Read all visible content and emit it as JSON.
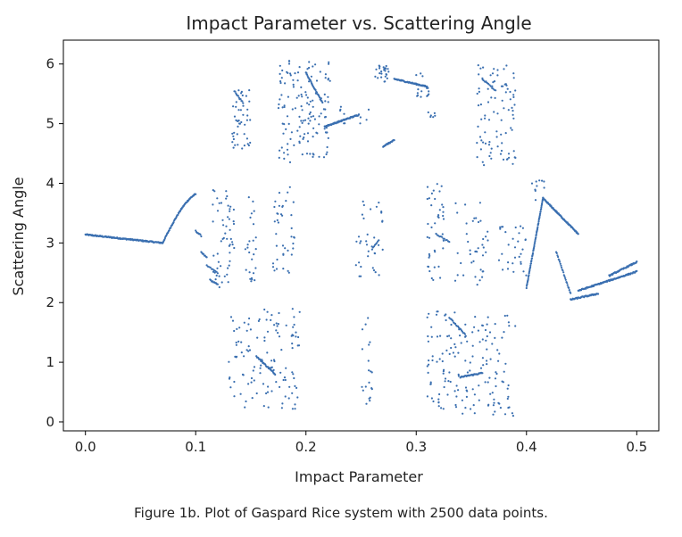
{
  "caption": "Figure 1b. Plot of Gaspard Rice system with 2500 data points.",
  "chart_data": {
    "type": "scatter",
    "title": "Impact Parameter vs. Scattering Angle",
    "xlabel": "Impact Parameter",
    "ylabel": "Scattering Angle",
    "xlim": [
      -0.02,
      0.52
    ],
    "ylim": [
      -0.15,
      6.4
    ],
    "xticks": [
      0.0,
      0.1,
      0.2,
      0.3,
      0.4,
      0.5
    ],
    "xtick_labels": [
      "0.0",
      "0.1",
      "0.2",
      "0.3",
      "0.4",
      "0.5"
    ],
    "yticks": [
      0,
      1,
      2,
      3,
      4,
      5,
      6
    ],
    "ytick_labels": [
      "0",
      "1",
      "2",
      "3",
      "4",
      "5",
      "6"
    ],
    "grid": false,
    "marker_color": "#3a6fb0",
    "point_count": 2500,
    "segments": [
      {
        "kind": "line",
        "x0": 0.0,
        "x1": 0.07,
        "y0": 3.14,
        "y1": 3.0,
        "n": 140
      },
      {
        "kind": "curve",
        "x0": 0.07,
        "x1": 0.1,
        "y0": 3.0,
        "y1": 3.82,
        "n": 70
      },
      {
        "kind": "line",
        "x0": 0.1,
        "x1": 0.105,
        "y0": 3.2,
        "y1": 3.12,
        "n": 8
      },
      {
        "kind": "line",
        "x0": 0.105,
        "x1": 0.11,
        "y0": 2.85,
        "y1": 2.75,
        "n": 8
      },
      {
        "kind": "line",
        "x0": 0.11,
        "x1": 0.12,
        "y0": 2.62,
        "y1": 2.5,
        "n": 10
      },
      {
        "kind": "line",
        "x0": 0.113,
        "x1": 0.12,
        "y0": 2.38,
        "y1": 2.3,
        "n": 10
      },
      {
        "kind": "cloud",
        "x0": 0.115,
        "x1": 0.135,
        "y0": 2.25,
        "y1": 3.9,
        "n": 55
      },
      {
        "kind": "cloud",
        "x0": 0.133,
        "x1": 0.15,
        "y0": 4.55,
        "y1": 5.6,
        "n": 45
      },
      {
        "kind": "line",
        "x0": 0.135,
        "x1": 0.143,
        "y0": 5.55,
        "y1": 5.35,
        "n": 12
      },
      {
        "kind": "cloud",
        "x0": 0.145,
        "x1": 0.155,
        "y0": 2.35,
        "y1": 3.8,
        "n": 25
      },
      {
        "kind": "cloud",
        "x0": 0.13,
        "x1": 0.195,
        "y0": 0.2,
        "y1": 1.9,
        "n": 120
      },
      {
        "kind": "line",
        "x0": 0.155,
        "x1": 0.172,
        "y0": 1.1,
        "y1": 0.8,
        "n": 30
      },
      {
        "kind": "cloud",
        "x0": 0.17,
        "x1": 0.19,
        "y0": 2.5,
        "y1": 4.0,
        "n": 40
      },
      {
        "kind": "cloud",
        "x0": 0.175,
        "x1": 0.222,
        "y0": 4.35,
        "y1": 6.1,
        "n": 140
      },
      {
        "kind": "line",
        "x0": 0.2,
        "x1": 0.215,
        "y0": 5.85,
        "y1": 5.35,
        "n": 30
      },
      {
        "kind": "line",
        "x0": 0.217,
        "x1": 0.248,
        "y0": 4.95,
        "y1": 5.15,
        "n": 70
      },
      {
        "kind": "cloud",
        "x0": 0.23,
        "x1": 0.26,
        "y0": 5.0,
        "y1": 5.3,
        "n": 10
      },
      {
        "kind": "cloud",
        "x0": 0.245,
        "x1": 0.27,
        "y0": 2.4,
        "y1": 3.7,
        "n": 35
      },
      {
        "kind": "line",
        "x0": 0.26,
        "x1": 0.266,
        "y0": 2.9,
        "y1": 3.05,
        "n": 8
      },
      {
        "kind": "cloud",
        "x0": 0.25,
        "x1": 0.26,
        "y0": 0.3,
        "y1": 1.8,
        "n": 20
      },
      {
        "kind": "cloud",
        "x0": 0.262,
        "x1": 0.275,
        "y0": 5.7,
        "y1": 6.0,
        "n": 25
      },
      {
        "kind": "line",
        "x0": 0.27,
        "x1": 0.28,
        "y0": 4.62,
        "y1": 4.72,
        "n": 25
      },
      {
        "kind": "line",
        "x0": 0.28,
        "x1": 0.31,
        "y0": 5.75,
        "y1": 5.62,
        "n": 60
      },
      {
        "kind": "cloud",
        "x0": 0.3,
        "x1": 0.313,
        "y0": 5.4,
        "y1": 5.85,
        "n": 15
      },
      {
        "kind": "cloud",
        "x0": 0.31,
        "x1": 0.318,
        "y0": 5.1,
        "y1": 5.2,
        "n": 6
      },
      {
        "kind": "cloud",
        "x0": 0.31,
        "x1": 0.325,
        "y0": 2.3,
        "y1": 4.05,
        "n": 40
      },
      {
        "kind": "line",
        "x0": 0.318,
        "x1": 0.33,
        "y0": 3.15,
        "y1": 3.02,
        "n": 12
      },
      {
        "kind": "cloud",
        "x0": 0.31,
        "x1": 0.34,
        "y0": 0.2,
        "y1": 1.9,
        "n": 70
      },
      {
        "kind": "line",
        "x0": 0.33,
        "x1": 0.345,
        "y0": 1.75,
        "y1": 1.45,
        "n": 20
      },
      {
        "kind": "line",
        "x0": 0.34,
        "x1": 0.36,
        "y0": 0.75,
        "y1": 0.82,
        "n": 40
      },
      {
        "kind": "cloud",
        "x0": 0.34,
        "x1": 0.39,
        "y0": 0.1,
        "y1": 1.8,
        "n": 90
      },
      {
        "kind": "cloud",
        "x0": 0.335,
        "x1": 0.365,
        "y0": 2.3,
        "y1": 3.7,
        "n": 40
      },
      {
        "kind": "cloud",
        "x0": 0.355,
        "x1": 0.39,
        "y0": 4.3,
        "y1": 6.0,
        "n": 90
      },
      {
        "kind": "line",
        "x0": 0.36,
        "x1": 0.372,
        "y0": 5.75,
        "y1": 5.55,
        "n": 12
      },
      {
        "kind": "cloud",
        "x0": 0.375,
        "x1": 0.4,
        "y0": 2.45,
        "y1": 3.3,
        "n": 30
      },
      {
        "kind": "line",
        "x0": 0.4,
        "x1": 0.415,
        "y0": 2.25,
        "y1": 3.75,
        "n": 70
      },
      {
        "kind": "cloud",
        "x0": 0.405,
        "x1": 0.418,
        "y0": 3.6,
        "y1": 4.05,
        "n": 10
      },
      {
        "kind": "line",
        "x0": 0.415,
        "x1": 0.447,
        "y0": 3.75,
        "y1": 3.15,
        "n": 80
      },
      {
        "kind": "line",
        "x0": 0.427,
        "x1": 0.44,
        "y0": 2.85,
        "y1": 2.15,
        "n": 25
      },
      {
        "kind": "line",
        "x0": 0.44,
        "x1": 0.465,
        "y0": 2.05,
        "y1": 2.15,
        "n": 50
      },
      {
        "kind": "line",
        "x0": 0.447,
        "x1": 0.5,
        "y0": 2.2,
        "y1": 2.52,
        "n": 100
      },
      {
        "kind": "line",
        "x0": 0.475,
        "x1": 0.5,
        "y0": 2.45,
        "y1": 2.68,
        "n": 50
      }
    ]
  }
}
